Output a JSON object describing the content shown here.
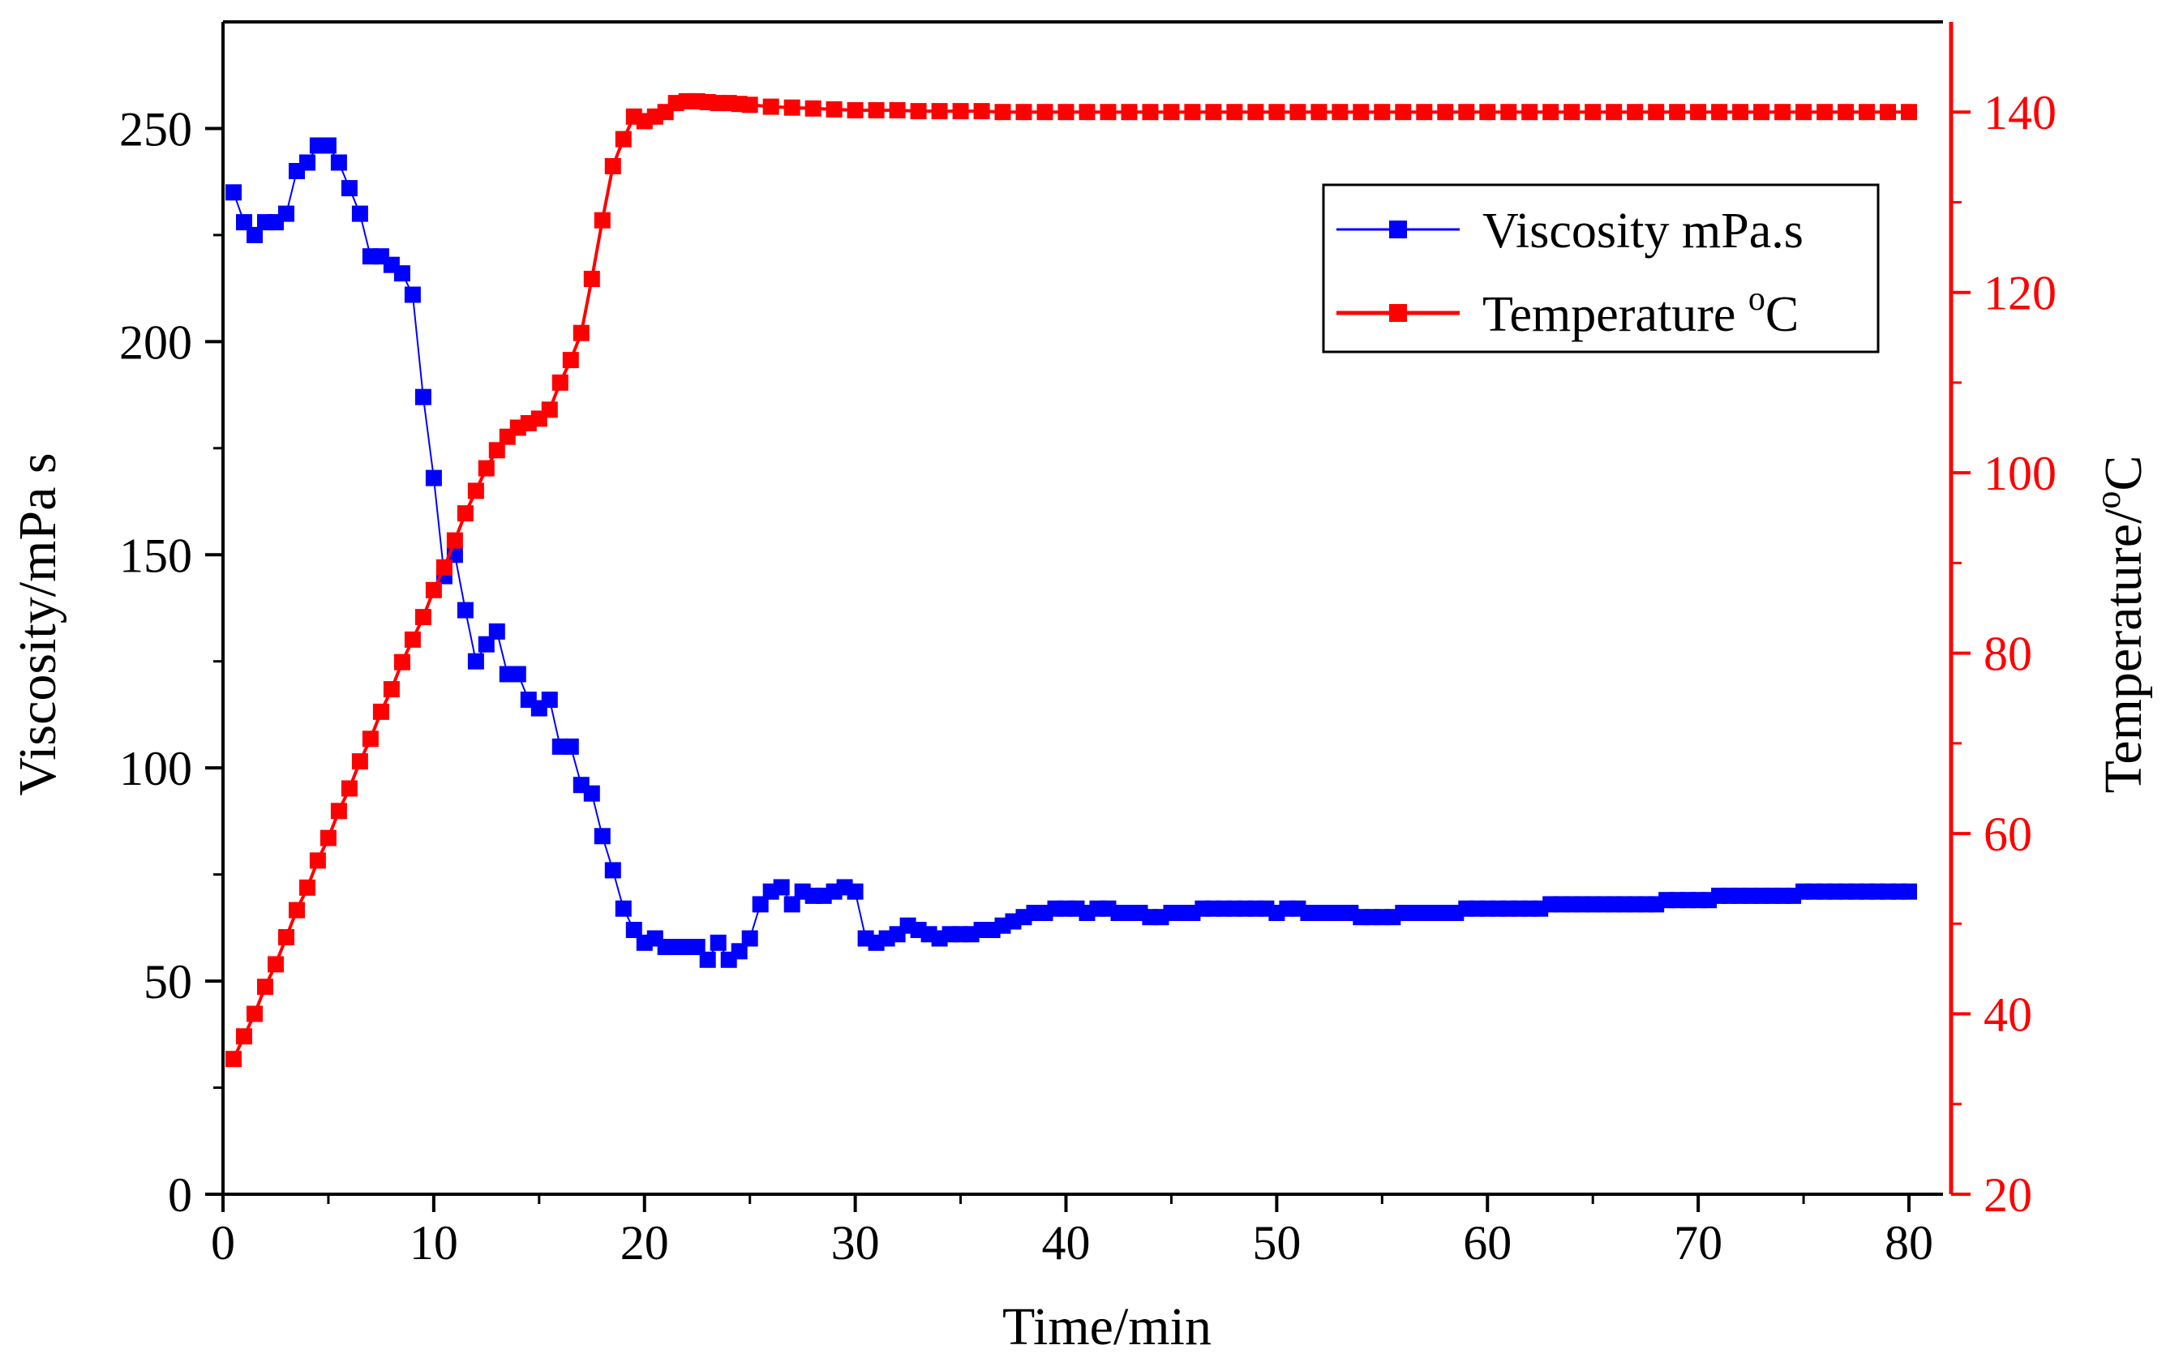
{
  "chart_data": {
    "type": "line",
    "title": "",
    "xlabel": "Time/min",
    "ylabel": "Viscosity/mPa s",
    "ylabel_right_main": "Temperature/",
    "ylabel_right_sup": "o",
    "ylabel_right_tail": "C",
    "xlim": [
      0,
      82
    ],
    "ylim": [
      0,
      275
    ],
    "ylim_right": [
      20,
      150
    ],
    "x_ticks": [
      0,
      10,
      20,
      30,
      40,
      50,
      60,
      70,
      80
    ],
    "x_tick_labels": [
      "0",
      "10",
      "20",
      "30",
      "40",
      "50",
      "60",
      "70",
      "80"
    ],
    "y_ticks": [
      0,
      50,
      100,
      150,
      200,
      250
    ],
    "y_tick_labels": [
      "0",
      "50",
      "100",
      "150",
      "200",
      "250"
    ],
    "y_minor_ticks": [
      25,
      75,
      125,
      175,
      225
    ],
    "y_right_ticks": [
      20,
      40,
      60,
      80,
      100,
      120,
      140
    ],
    "y_right_tick_labels": [
      "20",
      "40",
      "60",
      "80",
      "100",
      "120",
      "140"
    ],
    "y_right_minor_ticks": [
      30,
      50,
      70,
      90,
      110,
      130
    ],
    "grid": false,
    "legend_placement": "top-right",
    "legend": [
      {
        "main": "Viscosity  mPa.s",
        "sup": "",
        "tail": ""
      },
      {
        "main": "Temperature ",
        "sup": "o",
        "tail": "C"
      }
    ],
    "series": [
      {
        "name": "Viscosity  mPa.s",
        "axis": "left",
        "color": "#0000FF",
        "x": [
          0.5,
          1.0,
          1.5,
          2.0,
          2.5,
          3.0,
          3.5,
          4.0,
          4.5,
          5.0,
          5.5,
          6.0,
          6.5,
          7.0,
          7.5,
          8.0,
          8.5,
          9.0,
          9.5,
          10.0,
          10.5,
          11.0,
          11.5,
          12.0,
          12.5,
          13.0,
          13.5,
          14.0,
          14.5,
          15.0,
          15.5,
          16.0,
          16.5,
          17.0,
          17.5,
          18.0,
          18.5,
          19.0,
          19.5,
          20.0,
          20.5,
          21.0,
          21.5,
          22.0,
          22.5,
          23.0,
          23.5,
          24.0,
          24.5,
          25.0,
          25.5,
          26.0,
          26.5,
          27.0,
          27.5,
          28.0,
          28.5,
          29.0,
          29.5,
          30.0,
          30.5,
          31.0,
          31.5,
          32.0,
          32.5,
          33.0,
          33.5,
          34.0,
          34.5,
          35.0,
          35.5,
          36.0,
          36.5,
          37.0,
          37.5,
          38.0,
          38.5,
          39.0,
          39.5,
          40.0,
          40.5,
          41.0,
          41.5,
          42.0,
          42.5,
          43.0,
          43.5,
          44.0,
          44.5,
          45.0,
          45.5,
          46.0,
          46.5,
          47.0,
          47.5,
          48.0,
          48.5,
          49.0,
          49.5,
          50.0,
          50.5,
          51.0,
          51.5,
          52.0,
          52.5,
          53.0,
          53.5,
          54.0,
          54.5,
          55.0,
          55.5,
          56.0,
          56.5,
          57.0,
          57.5,
          58.0,
          58.5,
          59.0,
          59.5,
          60.0,
          60.5,
          61.0,
          61.5,
          62.0,
          62.5,
          63.0,
          63.5,
          64.0,
          64.5,
          65.0,
          65.5,
          66.0,
          66.5,
          67.0,
          67.5,
          68.0,
          68.5,
          69.0,
          69.5,
          70.0,
          70.5,
          71.0,
          71.5,
          72.0,
          72.5,
          73.0,
          73.5,
          74.0,
          74.5,
          75.0,
          75.5,
          76.0,
          76.5,
          77.0,
          77.5,
          78.0,
          78.5,
          79.0,
          79.5,
          80.0
        ],
        "values": [
          235,
          228,
          225,
          228,
          228,
          230,
          240,
          242,
          246,
          246,
          242,
          236,
          230,
          220,
          220,
          218,
          216,
          211,
          187,
          168,
          145,
          150,
          137,
          125,
          129,
          132,
          122,
          122,
          116,
          114,
          116,
          105,
          105,
          96,
          94,
          84,
          76,
          67,
          62,
          59,
          60,
          58,
          58,
          58,
          58,
          55,
          59,
          55,
          57,
          60,
          68,
          71,
          72,
          68,
          71,
          70,
          70,
          71,
          72,
          71,
          60,
          59,
          60,
          61,
          63,
          62,
          61,
          60,
          61,
          61,
          61,
          62,
          62,
          63,
          64,
          65,
          66,
          66,
          67,
          67,
          67,
          66,
          67,
          67,
          66,
          66,
          66,
          65,
          65,
          66,
          66,
          66,
          67,
          67,
          67,
          67,
          67,
          67,
          67,
          66,
          67,
          67,
          66,
          66,
          66,
          66,
          66,
          65,
          65,
          65,
          65,
          66,
          66,
          66,
          66,
          66,
          66,
          67,
          67,
          67,
          67,
          67,
          67,
          67,
          67,
          68,
          68,
          68,
          68,
          68,
          68,
          68,
          68,
          68,
          68,
          68,
          69,
          69,
          69,
          69,
          69,
          70,
          70,
          70,
          70,
          70,
          70,
          70,
          70,
          71,
          71,
          71,
          71,
          71,
          71,
          71,
          71,
          71,
          71,
          71
        ]
      },
      {
        "name": "Temperature oC",
        "axis": "right",
        "color": "#FF0000",
        "x": [
          0.5,
          1.0,
          1.5,
          2.0,
          2.5,
          3.0,
          3.5,
          4.0,
          4.5,
          5.0,
          5.5,
          6.0,
          6.5,
          7.0,
          7.5,
          8.0,
          8.5,
          9.0,
          9.5,
          10.0,
          10.5,
          11.0,
          11.5,
          12.0,
          12.5,
          13.0,
          13.5,
          14.0,
          14.5,
          15.0,
          15.5,
          16.0,
          16.5,
          17.0,
          17.5,
          18.0,
          18.5,
          19.0,
          19.5,
          20.0,
          20.5,
          21.0,
          21.5,
          22.0,
          22.5,
          23.0,
          23.5,
          24.0,
          24.5,
          25.0,
          26.0,
          27.0,
          28.0,
          29.0,
          30.0,
          31.0,
          32.0,
          33.0,
          34.0,
          35.0,
          36.0,
          37.0,
          38.0,
          39.0,
          40.0,
          41.0,
          42.0,
          43.0,
          44.0,
          45.0,
          46.0,
          47.0,
          48.0,
          49.0,
          50.0,
          51.0,
          52.0,
          53.0,
          54.0,
          55.0,
          56.0,
          57.0,
          58.0,
          59.0,
          60.0,
          61.0,
          62.0,
          63.0,
          64.0,
          65.0,
          66.0,
          67.0,
          68.0,
          69.0,
          70.0,
          71.0,
          72.0,
          73.0,
          74.0,
          75.0,
          76.0,
          77.0,
          78.0,
          79.0,
          80.0
        ],
        "values": [
          35,
          37.5,
          40,
          43,
          45.5,
          48.5,
          51.5,
          54,
          57,
          59.5,
          62.5,
          65,
          68,
          70.5,
          73.5,
          76,
          79,
          81.5,
          84,
          87,
          89.5,
          92.5,
          95.5,
          98,
          100.5,
          102.5,
          104,
          105,
          105.5,
          106,
          107,
          110,
          112.5,
          115.5,
          121.5,
          128,
          134,
          137,
          139.5,
          139,
          139.5,
          140,
          141,
          141.2,
          141.2,
          141.1,
          141,
          141,
          140.9,
          140.8,
          140.6,
          140.5,
          140.4,
          140.3,
          140.2,
          140.2,
          140.2,
          140.1,
          140.1,
          140.1,
          140.1,
          140,
          140,
          140,
          140,
          140,
          140,
          140,
          140,
          140,
          140,
          140,
          140,
          140,
          140,
          140,
          140,
          140,
          140,
          140,
          140,
          140,
          140,
          140,
          140,
          140,
          140,
          140,
          140,
          140,
          140,
          140,
          140,
          140,
          140,
          140,
          140,
          140,
          140,
          140,
          140,
          140,
          140,
          140,
          140
        ]
      }
    ]
  }
}
